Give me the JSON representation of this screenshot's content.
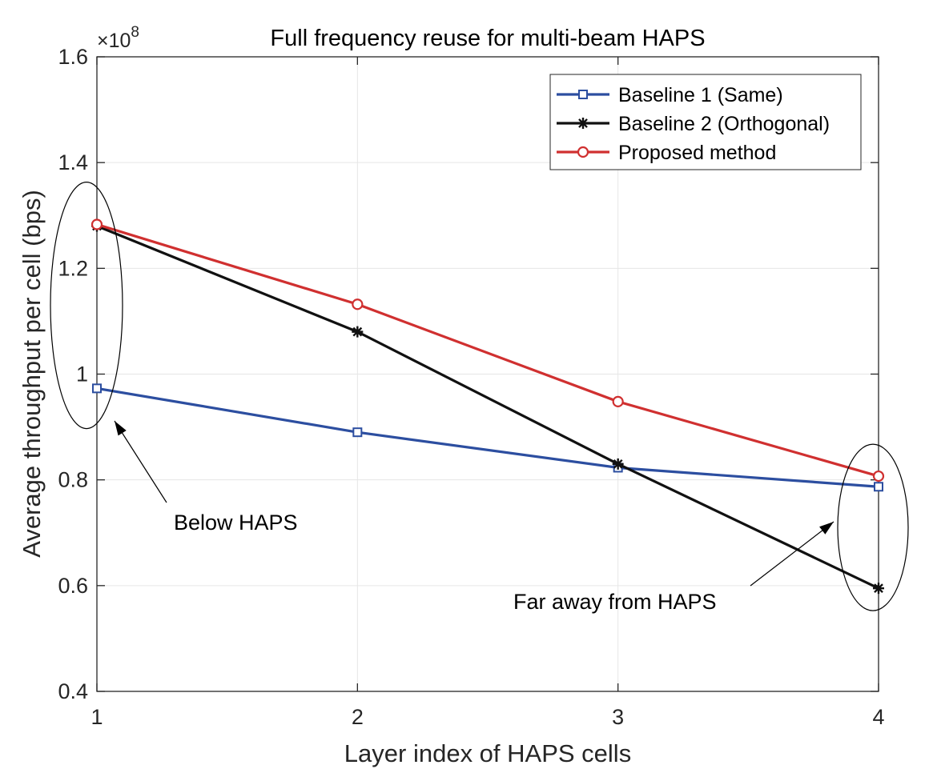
{
  "chart_data": {
    "type": "line",
    "title": "Full frequency reuse for multi-beam HAPS",
    "xlabel": "Layer index of HAPS cells",
    "ylabel": "Average throughput per cell (bps)",
    "y_exponent_prefix": "×10",
    "y_exponent_power": "8",
    "x": [
      1,
      2,
      3,
      4
    ],
    "xlim": [
      1,
      4
    ],
    "ylim": [
      0.4,
      1.6
    ],
    "x_ticks": [
      1,
      2,
      3,
      4
    ],
    "x_tick_labels": [
      "1",
      "2",
      "3",
      "4"
    ],
    "y_ticks": [
      0.4,
      0.6,
      0.8,
      1.0,
      1.2,
      1.4,
      1.6
    ],
    "y_tick_labels": [
      "0.4",
      "0.6",
      "0.8",
      "1",
      "1.2",
      "1.4",
      "1.6"
    ],
    "grid": true,
    "legend_position": "top-right",
    "series": [
      {
        "name": "Baseline 1 (Same)",
        "color": "#2c4ea0",
        "marker": "square",
        "values": [
          0.973,
          0.89,
          0.823,
          0.787
        ]
      },
      {
        "name": "Baseline 2 (Orthogonal)",
        "color": "#111111",
        "marker": "asterisk",
        "values": [
          1.28,
          1.08,
          0.83,
          0.595
        ]
      },
      {
        "name": "Proposed method",
        "color": "#d03030",
        "marker": "circle",
        "values": [
          1.283,
          1.132,
          0.948,
          0.807
        ]
      }
    ],
    "annotations": [
      {
        "text": "Below HAPS",
        "x": 1,
        "y_center": 1.13
      },
      {
        "text": "Far away from HAPS",
        "x": 4,
        "y_center": 0.71
      }
    ]
  }
}
